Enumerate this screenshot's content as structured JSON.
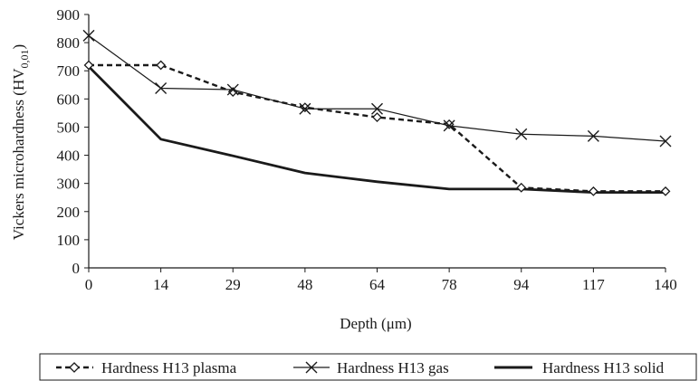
{
  "chart_data": {
    "type": "line",
    "categories": [
      "0",
      "14",
      "29",
      "48",
      "64",
      "78",
      "94",
      "117",
      "140"
    ],
    "series": [
      {
        "name": "Hardness H13 plasma",
        "style": "dashed-diamond",
        "values": [
          720,
          720,
          625,
          570,
          535,
          510,
          285,
          272,
          272
        ]
      },
      {
        "name": "Hardness H13 gas",
        "style": "thin-x",
        "values": [
          825,
          638,
          633,
          565,
          565,
          505,
          475,
          468,
          450
        ]
      },
      {
        "name": "Hardness H13 solid",
        "style": "thick-solid",
        "values": [
          715,
          457,
          398,
          337,
          306,
          280,
          280,
          268,
          268
        ]
      }
    ],
    "xlabel": "Depth (μm)",
    "ylabel": "Vickers microhardness (HV0,01)",
    "ylabel_main": "Vickers microhardness (HV",
    "ylabel_sub": "0,01",
    "ylabel_close": ")",
    "ylim": [
      0,
      900
    ],
    "yticks": [
      "0",
      "100",
      "200",
      "300",
      "400",
      "500",
      "600",
      "700",
      "800",
      "900"
    ],
    "grid": false,
    "legend_position": "bottom",
    "line_color": "#1a1a1a"
  }
}
